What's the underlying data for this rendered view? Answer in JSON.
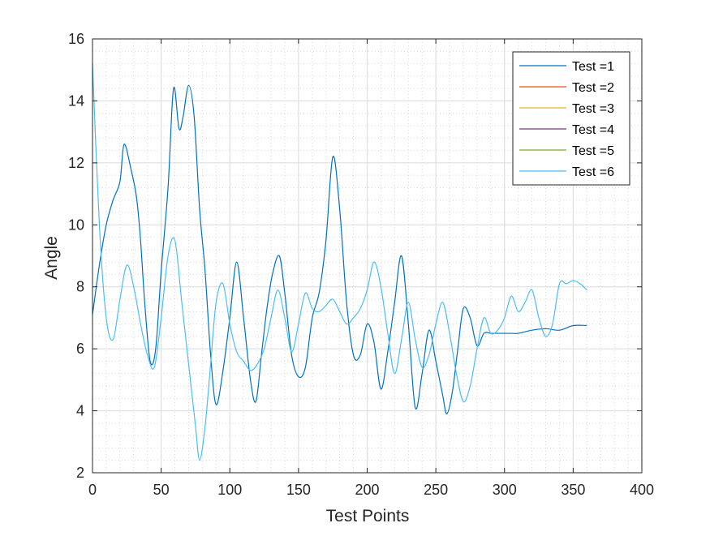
{
  "chart_data": {
    "type": "line",
    "title": "",
    "xlabel": "Test Points",
    "ylabel": "Angle",
    "xlim": [
      0,
      400
    ],
    "ylim": [
      2,
      16
    ],
    "xticks": [
      0,
      50,
      100,
      150,
      200,
      250,
      300,
      350,
      400
    ],
    "yticks": [
      2,
      4,
      6,
      8,
      10,
      12,
      14,
      16
    ],
    "grid": true,
    "minor_grid": true,
    "legend_position": "top-right",
    "series": [
      {
        "name": "Test =1",
        "color": "#0072BD",
        "x": [
          0,
          5,
          10,
          15,
          20,
          23,
          28,
          32,
          35,
          38,
          42,
          46,
          50,
          55,
          59,
          63,
          66,
          70,
          74,
          78,
          82,
          86,
          90,
          95,
          100,
          105,
          110,
          115,
          119,
          123,
          127,
          131,
          136,
          140,
          145,
          150,
          155,
          160,
          165,
          170,
          175,
          180,
          185,
          190,
          195,
          200,
          205,
          210,
          215,
          220,
          225,
          230,
          235,
          240,
          245,
          250,
          255,
          258,
          262,
          266,
          270,
          275,
          280,
          285,
          290,
          295,
          300,
          305,
          310,
          320,
          330,
          340,
          350,
          360
        ],
        "y": [
          7.1,
          8.7,
          10.0,
          10.8,
          11.4,
          12.6,
          11.8,
          10.9,
          9.5,
          7.5,
          5.6,
          6.0,
          8.5,
          11.2,
          14.4,
          13.1,
          13.5,
          14.5,
          13.5,
          10.5,
          8.5,
          5.8,
          4.2,
          5.3,
          7.0,
          8.8,
          7.0,
          5.0,
          4.3,
          5.8,
          7.3,
          8.4,
          9.0,
          7.8,
          5.8,
          5.1,
          5.4,
          7.0,
          7.8,
          9.5,
          12.2,
          10.5,
          7.5,
          5.8,
          5.8,
          6.8,
          6.2,
          4.7,
          5.9,
          7.5,
          9.0,
          6.8,
          4.1,
          5.2,
          6.6,
          5.6,
          4.5,
          3.9,
          4.6,
          6.0,
          7.3,
          7.0,
          6.1,
          6.5,
          6.5,
          6.5,
          6.5,
          6.5,
          6.5,
          6.6,
          6.65,
          6.6,
          6.75,
          6.75
        ]
      },
      {
        "name": "Test =2",
        "color": "#D95319",
        "x": [],
        "y": []
      },
      {
        "name": "Test =3",
        "color": "#EDB120",
        "x": [],
        "y": []
      },
      {
        "name": "Test =4",
        "color": "#7E2F8E",
        "x": [],
        "y": []
      },
      {
        "name": "Test =5",
        "color": "#77AC30",
        "x": [],
        "y": []
      },
      {
        "name": "Test =6",
        "color": "#4DBEEE",
        "x": [
          0,
          5,
          10,
          15,
          20,
          25,
          30,
          35,
          40,
          45,
          50,
          55,
          60,
          65,
          70,
          75,
          78,
          82,
          86,
          90,
          95,
          100,
          105,
          110,
          115,
          120,
          125,
          130,
          135,
          140,
          145,
          150,
          155,
          160,
          165,
          170,
          175,
          180,
          185,
          190,
          195,
          200,
          205,
          210,
          215,
          220,
          225,
          230,
          235,
          240,
          245,
          250,
          255,
          260,
          265,
          270,
          275,
          280,
          285,
          290,
          295,
          300,
          305,
          310,
          315,
          320,
          325,
          330,
          335,
          340,
          345,
          350,
          355,
          360
        ],
        "y": [
          15.2,
          10.0,
          7.0,
          6.3,
          7.6,
          8.7,
          8.0,
          6.8,
          5.8,
          5.4,
          7.0,
          9.0,
          9.5,
          7.5,
          5.5,
          3.5,
          2.4,
          3.5,
          5.5,
          7.5,
          8.1,
          6.8,
          5.9,
          5.6,
          5.3,
          5.5,
          6.0,
          7.0,
          7.9,
          7.0,
          5.9,
          6.8,
          7.8,
          7.3,
          7.2,
          7.4,
          7.6,
          7.2,
          6.8,
          7.0,
          7.3,
          7.9,
          8.8,
          8.0,
          6.5,
          5.2,
          6.3,
          7.5,
          6.3,
          5.4,
          5.8,
          6.8,
          7.5,
          6.5,
          5.2,
          4.3,
          4.8,
          6.0,
          7.0,
          6.5,
          6.6,
          7.0,
          7.7,
          7.2,
          7.5,
          7.9,
          7.0,
          6.4,
          6.8,
          8.1,
          8.1,
          8.2,
          8.1,
          7.9
        ]
      }
    ]
  }
}
